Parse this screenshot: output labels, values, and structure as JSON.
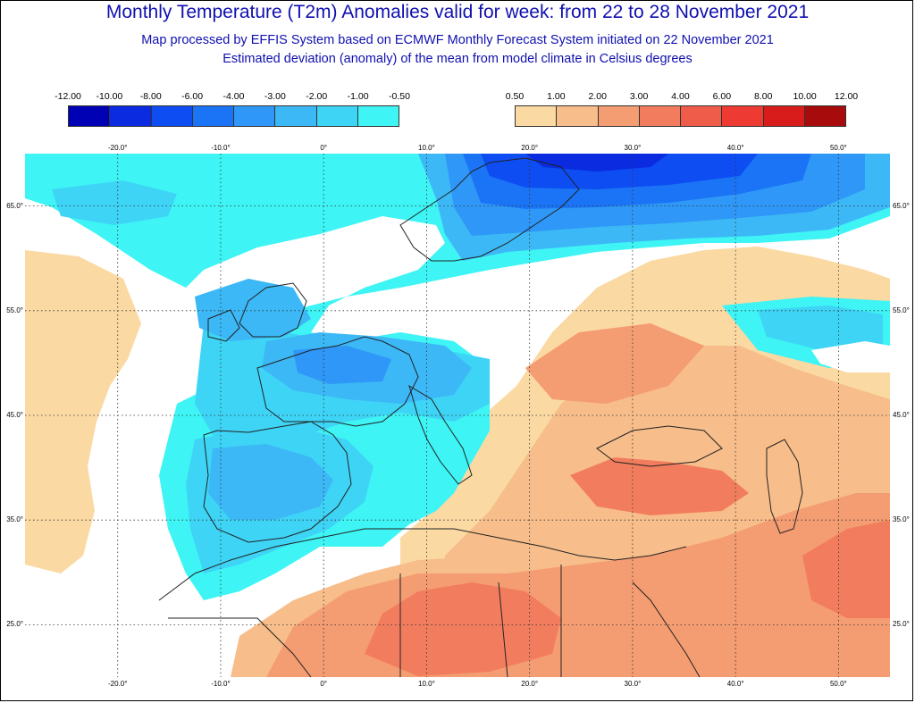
{
  "header": {
    "title": "Monthly Temperature (T2m) Anomalies valid for week: from 22 to 28 November 2021",
    "subtitle1": "Map processed by EFFIS System based on ECMWF Monthly Forecast System initiated on 22 November 2021",
    "subtitle2": "Estimated deviation (anomaly) of the mean from model climate in Celsius degrees"
  },
  "legend_cold": {
    "labels": [
      "-12.00",
      "-10.00",
      "-8.00",
      "-6.00",
      "-4.00",
      "-3.00",
      "-2.00",
      "-1.00",
      "-0.50"
    ],
    "colors": [
      "#0000b4",
      "#0a2be0",
      "#0d4df2",
      "#1a74f5",
      "#2f97f7",
      "#3cb8f6",
      "#3ed4f6",
      "#3ef4f4"
    ]
  },
  "legend_warm": {
    "labels": [
      "0.50",
      "1.00",
      "2.00",
      "3.00",
      "4.00",
      "6.00",
      "8.00",
      "10.00",
      "12.00"
    ],
    "colors": [
      "#fbd9a3",
      "#f7bd8a",
      "#f49c72",
      "#f27d5e",
      "#ef5d4a",
      "#ed3b33",
      "#d81c1c",
      "#a80b0b"
    ]
  },
  "map": {
    "lon_labels": [
      "-20.0°",
      "-10.0°",
      "0°",
      "10.0°",
      "20.0°",
      "30.0°",
      "40.0°",
      "50.0°"
    ],
    "lat_labels": [
      "65.0°",
      "55.0°",
      "45.0°",
      "35.0°",
      "25.0°"
    ],
    "lon_values": [
      -20,
      -10,
      0,
      10,
      20,
      30,
      40,
      50
    ],
    "lat_values": [
      65,
      55,
      45,
      35,
      25
    ],
    "extent": {
      "lon_min": -29,
      "lon_max": 55,
      "lat_min": 20,
      "lat_max": 70
    },
    "regions": [
      {
        "name": "scandinavia-cold-core",
        "anomaly": "-8.00"
      },
      {
        "name": "northern-russia-cold",
        "anomaly": "-6.00"
      },
      {
        "name": "western-europe-cold",
        "anomaly": "-3.00"
      },
      {
        "name": "iberia-cold",
        "anomaly": "-2.00"
      },
      {
        "name": "sahara-warm",
        "anomaly": "4.00"
      },
      {
        "name": "eastern-europe-warm",
        "anomaly": "2.00"
      },
      {
        "name": "atlantic-warm",
        "anomaly": "1.00"
      }
    ]
  }
}
